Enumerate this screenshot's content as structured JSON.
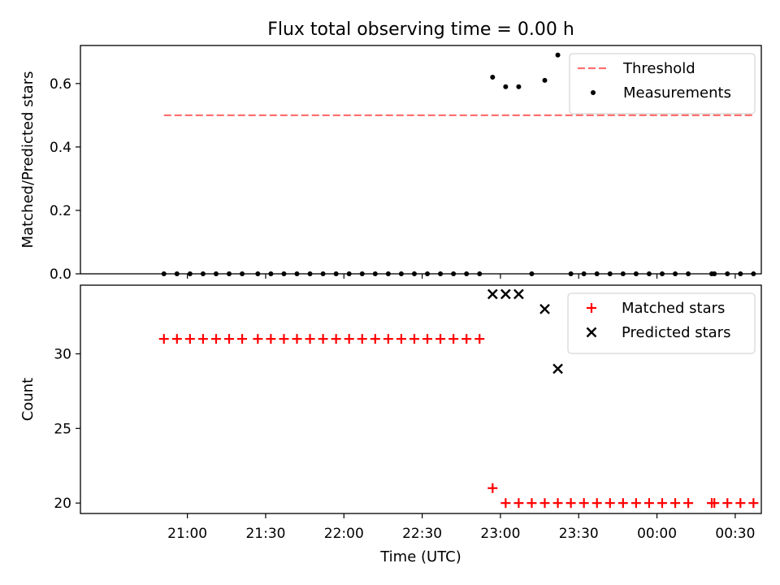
{
  "chart_data": {
    "type": "scatter",
    "title": "Flux total observing time = 0.00 h",
    "xlabel": "Time (UTC)",
    "x_tick_labels": [
      "21:00",
      "21:30",
      "22:00",
      "22:30",
      "23:00",
      "23:30",
      "00:00",
      "00:30"
    ],
    "x_tick_minutes": [
      1260,
      1290,
      1320,
      1350,
      1380,
      1410,
      1440,
      1470
    ],
    "xlim_minutes": [
      1219,
      1480
    ],
    "panels": [
      {
        "id": "ratio",
        "ylabel": "Matched/Predicted stars",
        "ylim": [
          0,
          0.72
        ],
        "y_ticks": [
          0.0,
          0.2,
          0.4,
          0.6
        ],
        "y_tick_labels": [
          "0.0",
          "0.2",
          "0.4",
          "0.6"
        ],
        "legend_position": "upper right",
        "series": [
          {
            "name": "Threshold",
            "kind": "dashed-line",
            "color": "#ff7070",
            "x": [
              "20:51",
              "00:37"
            ],
            "y": [
              0.5,
              0.5
            ]
          },
          {
            "name": "Measurements",
            "kind": "dot",
            "color": "#000000",
            "x": [
              "20:51",
              "20:56",
              "21:01",
              "21:06",
              "21:11",
              "21:16",
              "21:21",
              "21:27",
              "21:32",
              "21:37",
              "21:42",
              "21:47",
              "21:52",
              "21:57",
              "22:02",
              "22:07",
              "22:12",
              "22:17",
              "22:22",
              "22:27",
              "22:32",
              "22:37",
              "22:42",
              "22:47",
              "22:52",
              "22:57",
              "23:02",
              "23:07",
              "23:12",
              "23:17",
              "23:22",
              "23:27",
              "23:32",
              "23:37",
              "23:42",
              "23:47",
              "23:52",
              "23:57",
              "00:02",
              "00:07",
              "00:12",
              "00:21",
              "00:22",
              "00:27",
              "00:32",
              "00:37"
            ],
            "y": [
              0,
              0,
              0,
              0,
              0,
              0,
              0,
              0,
              0,
              0,
              0,
              0,
              0,
              0,
              0,
              0,
              0,
              0,
              0,
              0,
              0,
              0,
              0,
              0,
              0,
              0.62,
              0.59,
              0.59,
              0,
              0.61,
              0.69,
              0,
              0,
              0,
              0,
              0,
              0,
              0,
              0,
              0,
              0,
              0,
              0,
              0,
              0,
              0
            ]
          }
        ]
      },
      {
        "id": "count",
        "ylabel": "Count",
        "ylim": [
          19.3,
          34.6
        ],
        "y_ticks": [
          20,
          25,
          30
        ],
        "y_tick_labels": [
          "20",
          "25",
          "30"
        ],
        "legend_position": "upper right",
        "series": [
          {
            "name": "Matched stars",
            "kind": "plus",
            "color": "#ff0000",
            "x": [
              "20:51",
              "20:56",
              "21:01",
              "21:06",
              "21:11",
              "21:16",
              "21:21",
              "21:27",
              "21:32",
              "21:37",
              "21:42",
              "21:47",
              "21:52",
              "21:57",
              "22:02",
              "22:07",
              "22:12",
              "22:17",
              "22:22",
              "22:27",
              "22:32",
              "22:37",
              "22:42",
              "22:47",
              "22:52",
              "22:57",
              "23:02",
              "23:07",
              "23:12",
              "23:17",
              "23:22",
              "23:27",
              "23:32",
              "23:37",
              "23:42",
              "23:47",
              "23:52",
              "23:57",
              "00:02",
              "00:07",
              "00:12",
              "00:21",
              "00:22",
              "00:27",
              "00:32",
              "00:37"
            ],
            "y": [
              31,
              31,
              31,
              31,
              31,
              31,
              31,
              31,
              31,
              31,
              31,
              31,
              31,
              31,
              31,
              31,
              31,
              31,
              31,
              31,
              31,
              31,
              31,
              31,
              31,
              21,
              20,
              20,
              20,
              20,
              20,
              20,
              20,
              20,
              20,
              20,
              20,
              20,
              20,
              20,
              20,
              20,
              20,
              20,
              20,
              20
            ]
          },
          {
            "name": "Predicted stars",
            "kind": "x",
            "color": "#000000",
            "x": [
              "22:57",
              "23:02",
              "23:07",
              "23:17",
              "23:22"
            ],
            "y": [
              34,
              34,
              34,
              33,
              29
            ]
          }
        ]
      }
    ]
  }
}
